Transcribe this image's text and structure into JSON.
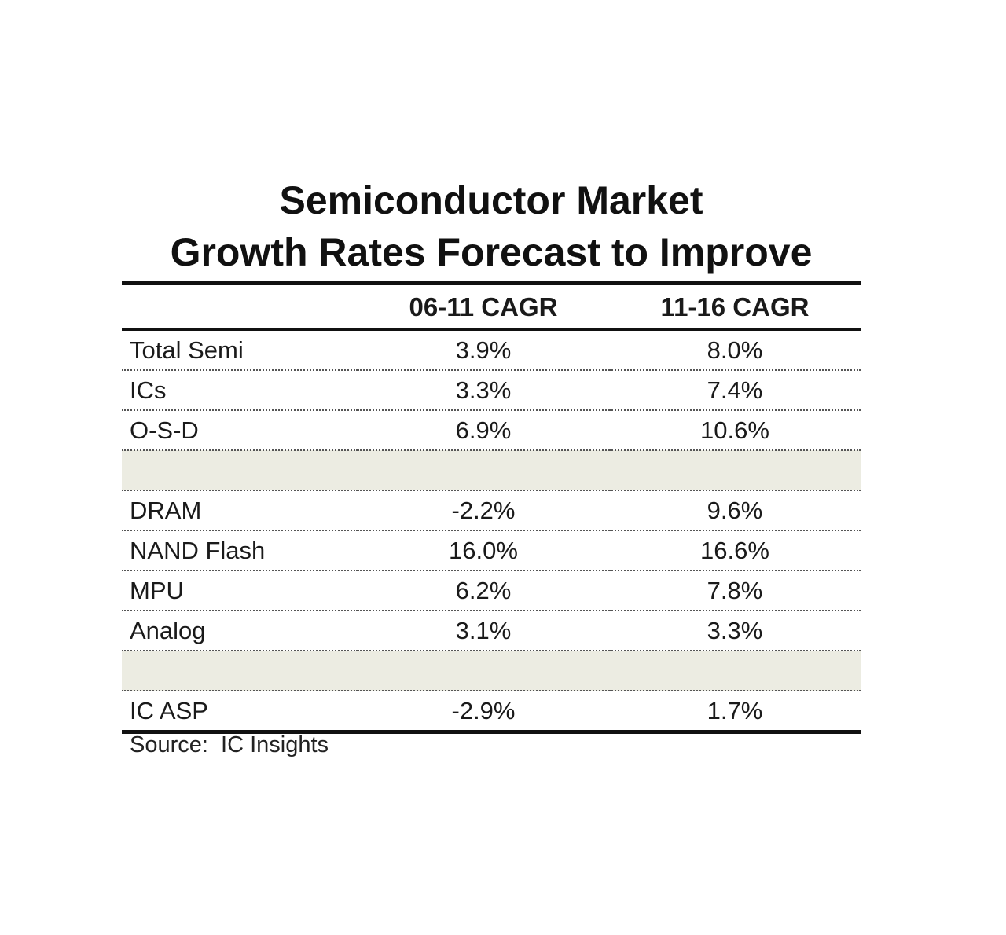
{
  "chart_data": {
    "type": "table",
    "title": "Semiconductor Market Growth Rates Forecast to Improve",
    "title_lines": [
      "Semiconductor Market",
      "Growth Rates Forecast to Improve"
    ],
    "columns": [
      "",
      "06-11 CAGR",
      "11-16 CAGR"
    ],
    "rows": [
      {
        "label": "Total Semi",
        "values": [
          "3.9%",
          "8.0%"
        ]
      },
      {
        "label": "ICs",
        "values": [
          "3.3%",
          "7.4%"
        ]
      },
      {
        "label": "O-S-D",
        "values": [
          "6.9%",
          "10.6%"
        ]
      },
      {
        "label": "",
        "values": [
          "",
          ""
        ]
      },
      {
        "label": "DRAM",
        "values": [
          "-2.2%",
          "9.6%"
        ]
      },
      {
        "label": "NAND Flash",
        "values": [
          "16.0%",
          "16.6%"
        ]
      },
      {
        "label": "MPU",
        "values": [
          "6.2%",
          "7.8%"
        ]
      },
      {
        "label": "Analog",
        "values": [
          "3.1%",
          "3.3%"
        ]
      },
      {
        "label": "",
        "values": [
          "",
          ""
        ]
      },
      {
        "label": "IC ASP",
        "values": [
          "-2.9%",
          "1.7%"
        ]
      }
    ],
    "series": [
      {
        "name": "06-11 CAGR",
        "values": [
          3.9,
          3.3,
          6.9,
          null,
          -2.2,
          16.0,
          6.2,
          3.1,
          null,
          -2.9
        ]
      },
      {
        "name": "11-16 CAGR",
        "values": [
          8.0,
          7.4,
          10.6,
          null,
          9.6,
          16.6,
          7.8,
          3.3,
          null,
          1.7
        ]
      }
    ],
    "source": "Source:  IC Insights",
    "spacer_color": "#ecece2"
  }
}
